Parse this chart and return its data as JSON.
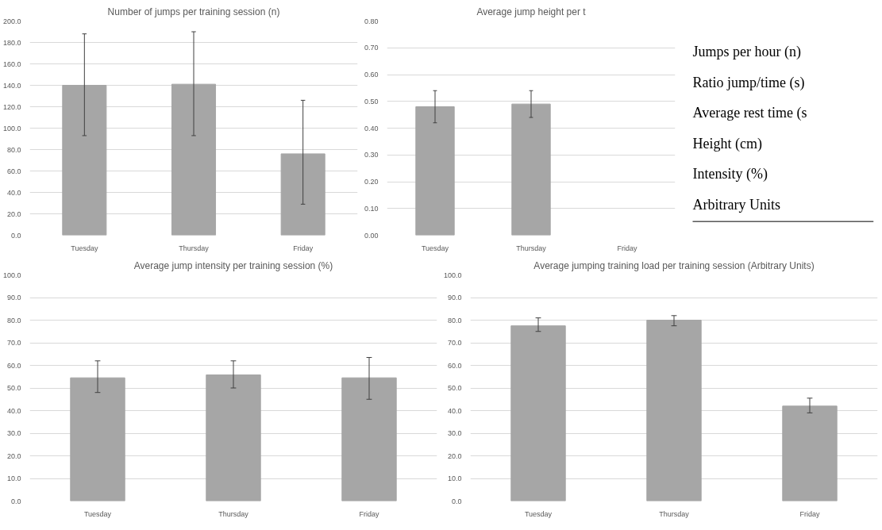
{
  "chart_data": [
    {
      "type": "bar",
      "title": "Number of jumps per training session (n)",
      "categories": [
        "Tuesday",
        "Thursday",
        "Friday"
      ],
      "color": "#a6a6a6",
      "values": [
        140,
        141,
        76
      ],
      "errors": [
        [
          93,
          188
        ],
        [
          93,
          190
        ],
        [
          29,
          126
        ]
      ],
      "ylim": [
        0,
        200
      ],
      "yticks": [
        {
          "value": 0,
          "label": "0.0"
        },
        {
          "value": 20,
          "label": "20.0"
        },
        {
          "value": 40,
          "label": "40.0"
        },
        {
          "value": 60,
          "label": "60.0"
        },
        {
          "value": 80,
          "label": "80.0"
        },
        {
          "value": 100,
          "label": "100.0"
        },
        {
          "value": 120,
          "label": "120.0"
        },
        {
          "value": 140,
          "label": "140.0"
        },
        {
          "value": 160,
          "label": "160.0"
        },
        {
          "value": 180,
          "label": "180.0"
        },
        {
          "value": 200,
          "label": "200.0"
        }
      ],
      "grid": "y"
    },
    {
      "type": "bar",
      "title": "Average jump height per t",
      "categories": [
        "Tuesday",
        "Thursday",
        "Friday"
      ],
      "color": "#a6a6a6",
      "values": [
        0.48,
        0.49,
        null
      ],
      "errors": [
        [
          0.42,
          0.54
        ],
        [
          0.44,
          0.54
        ],
        null
      ],
      "ylim": [
        0,
        0.8
      ],
      "yticks": [
        {
          "value": 0,
          "label": "0.00"
        },
        {
          "value": 0.1,
          "label": "0.10"
        },
        {
          "value": 0.2,
          "label": "0.20"
        },
        {
          "value": 0.3,
          "label": "0.30"
        },
        {
          "value": 0.4,
          "label": "0.40"
        },
        {
          "value": 0.5,
          "label": "0.50"
        },
        {
          "value": 0.6,
          "label": "0.60"
        },
        {
          "value": 0.7,
          "label": "0.70"
        },
        {
          "value": 0.8,
          "label": "0.80"
        }
      ],
      "grid": "y"
    },
    {
      "type": "other",
      "annotations": [
        "Jumps per hour (n)",
        "Ratio jump/time (s)",
        "Average rest time (s",
        "Height (cm)",
        "Intensity (%)",
        "Arbitrary Units"
      ]
    },
    {
      "type": "bar",
      "title": "Average jump intensity per training session (%)",
      "categories": [
        "Tuesday",
        "Thursday",
        "Friday"
      ],
      "color": "#a6a6a6",
      "values": [
        54.5,
        55.8,
        54.5
      ],
      "errors": [
        [
          48,
          62
        ],
        [
          50,
          62
        ],
        [
          45,
          63.5
        ]
      ],
      "ylim": [
        0,
        100
      ],
      "yticks": [
        {
          "value": 0,
          "label": "0.0"
        },
        {
          "value": 10,
          "label": "10.0"
        },
        {
          "value": 20,
          "label": "20.0"
        },
        {
          "value": 30,
          "label": "30.0"
        },
        {
          "value": 40,
          "label": "40.0"
        },
        {
          "value": 50,
          "label": "50.0"
        },
        {
          "value": 60,
          "label": "60.0"
        },
        {
          "value": 70,
          "label": "70.0"
        },
        {
          "value": 80,
          "label": "80.0"
        },
        {
          "value": 90,
          "label": "90.0"
        },
        {
          "value": 100,
          "label": "100.0"
        }
      ],
      "grid": "y"
    },
    {
      "type": "bar",
      "title": "Average jumping training load per training session (Arbitrary Units)",
      "categories": [
        "Tuesday",
        "Thursday",
        "Friday"
      ],
      "color": "#a6a6a6",
      "values": [
        77.5,
        80,
        42
      ],
      "errors": [
        [
          75,
          81
        ],
        [
          77.5,
          82
        ],
        [
          39,
          45.5
        ]
      ],
      "ylim": [
        0,
        100
      ],
      "yticks": [
        {
          "value": 0,
          "label": "0.0"
        },
        {
          "value": 10,
          "label": "10.0"
        },
        {
          "value": 20,
          "label": "20.0"
        },
        {
          "value": 30,
          "label": "30.0"
        },
        {
          "value": 40,
          "label": "40.0"
        },
        {
          "value": 50,
          "label": "50.0"
        },
        {
          "value": 60,
          "label": "60.0"
        },
        {
          "value": 70,
          "label": "70.0"
        },
        {
          "value": 80,
          "label": "80.0"
        },
        {
          "value": 90,
          "label": "90.0"
        },
        {
          "value": 100,
          "label": "100.0"
        }
      ],
      "grid": "y"
    }
  ]
}
